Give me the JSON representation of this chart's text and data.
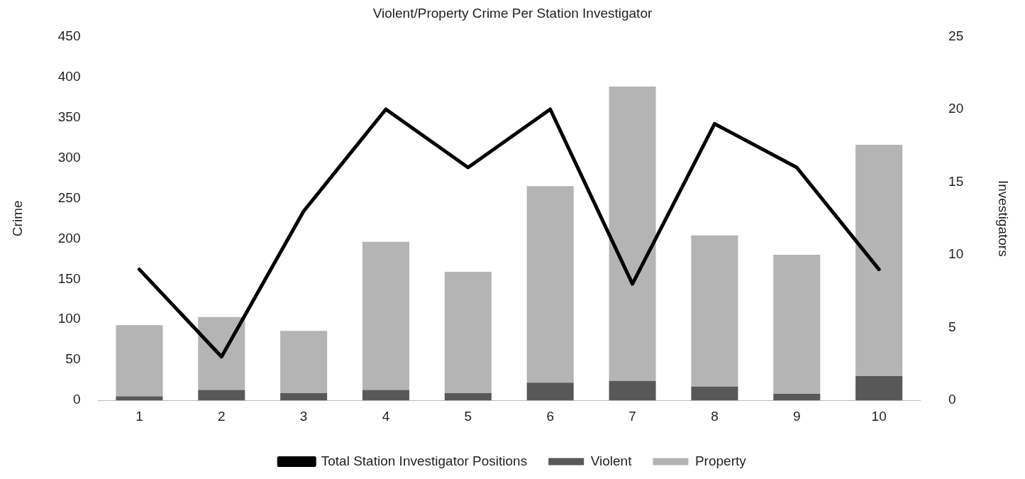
{
  "chart_data": {
    "type": "bar",
    "title": "Violent/Property Crime Per Station Investigator",
    "ylabel": "Crime",
    "y2label": "Investigators",
    "categories": [
      "1",
      "2",
      "3",
      "4",
      "5",
      "6",
      "7",
      "8",
      "9",
      "10"
    ],
    "stacked": true,
    "grid": false,
    "legend": "bottom",
    "ylim": [
      0,
      450
    ],
    "yticks": [
      0,
      50,
      100,
      150,
      200,
      250,
      300,
      350,
      400,
      450
    ],
    "y2lim": [
      0,
      25
    ],
    "y2ticks": [
      0,
      5,
      10,
      15,
      20,
      25
    ],
    "series": [
      {
        "name": "Violent",
        "color": "#585858",
        "values": [
          5,
          13,
          9,
          13,
          9,
          22,
          24,
          17,
          8,
          30
        ]
      },
      {
        "name": "Property",
        "color": "#b4b4b4",
        "values": [
          88,
          90,
          77,
          183,
          150,
          243,
          364,
          187,
          172,
          286
        ]
      },
      {
        "name": "Total Station Investigator Positions",
        "type": "line",
        "axis": "y2",
        "color": "#000000",
        "marker": "none",
        "values": [
          9,
          3,
          13,
          20,
          16,
          20,
          8,
          19,
          16,
          9
        ]
      }
    ]
  }
}
